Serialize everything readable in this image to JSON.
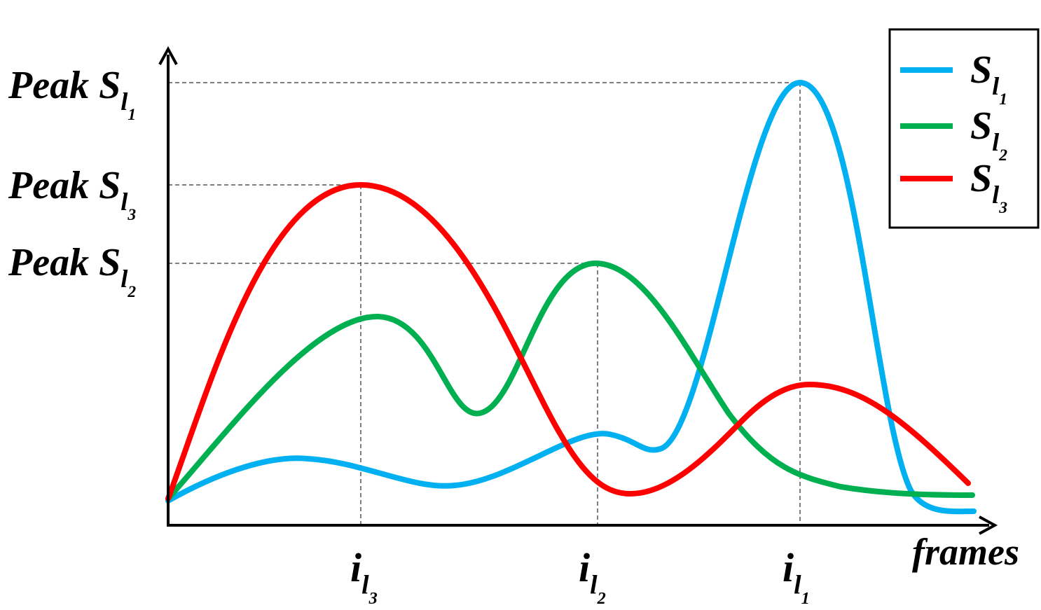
{
  "y_labels": [
    {
      "main": "Peak S",
      "sub": "l",
      "subsub": "1"
    },
    {
      "main": "Peak S",
      "sub": "l",
      "subsub": "3"
    },
    {
      "main": "Peak S",
      "sub": "l",
      "subsub": "2"
    }
  ],
  "x_labels": [
    {
      "main": "i",
      "sub": "l",
      "subsub": "3"
    },
    {
      "main": "i",
      "sub": "l",
      "subsub": "2"
    },
    {
      "main": "i",
      "sub": "l",
      "subsub": "1"
    }
  ],
  "x_axis_label": "frames",
  "legend": [
    {
      "main": "S",
      "sub": "l",
      "subsub": "1",
      "color": "#00b0f0"
    },
    {
      "main": "S",
      "sub": "l",
      "subsub": "2",
      "color": "#00b050"
    },
    {
      "main": "S",
      "sub": "l",
      "subsub": "3",
      "color": "#ff0000"
    }
  ]
}
